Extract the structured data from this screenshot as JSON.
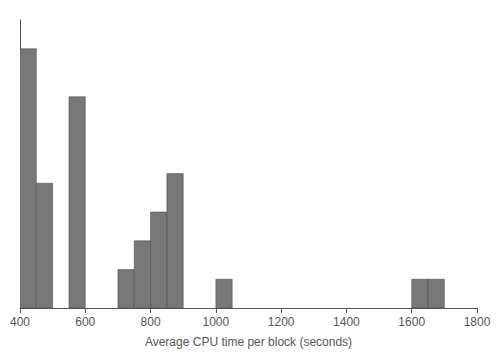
{
  "chart_data": {
    "type": "histogram",
    "xlabel": "Average CPU time per block (seconds)",
    "bins": [
      400,
      450,
      500,
      550,
      600,
      650,
      700,
      750,
      800,
      850,
      900,
      950,
      1000,
      1050,
      1100,
      1150,
      1200,
      1250,
      1300,
      1350,
      1400,
      1450,
      1500,
      1550,
      1600,
      1650,
      1700,
      1750,
      1800
    ],
    "values": [
      27,
      13,
      0,
      22,
      0,
      0,
      4,
      7,
      10,
      14,
      0,
      0,
      3,
      0,
      0,
      0,
      0,
      0,
      0,
      0,
      0,
      0,
      0,
      0,
      3,
      3,
      0,
      0
    ],
    "color": "#787878",
    "xlim": [
      400,
      1800
    ],
    "xticks": [
      400,
      600,
      800,
      1000,
      1200,
      1400,
      1600,
      1800
    ],
    "ylim": [
      0,
      30
    ],
    "tick_labels": "x",
    "grid": false
  }
}
